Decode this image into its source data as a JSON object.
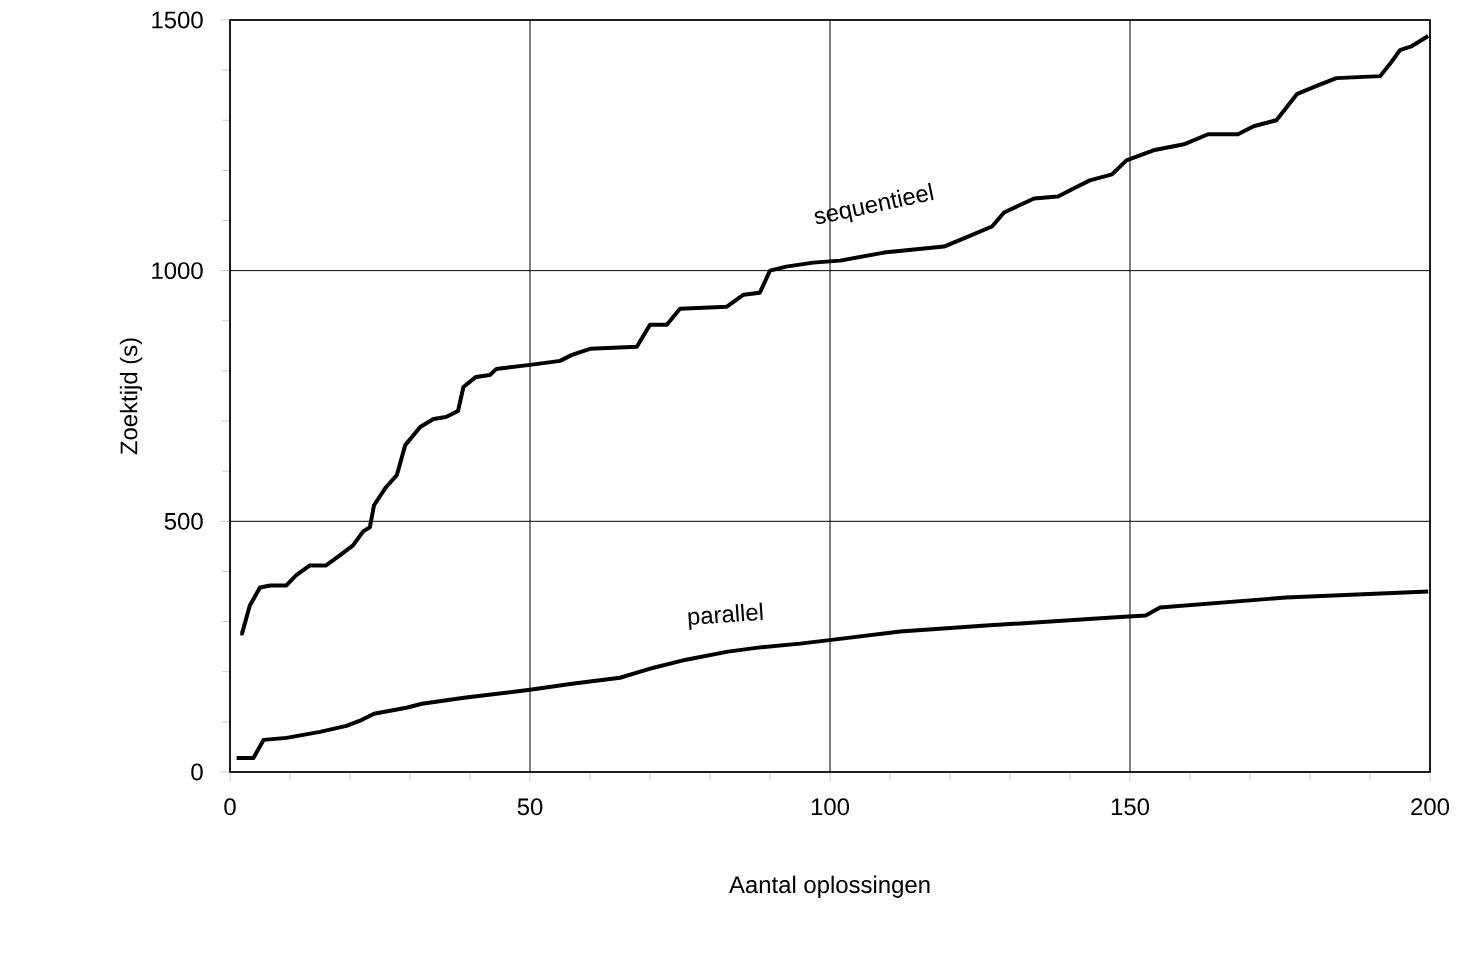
{
  "chart_data": {
    "type": "line",
    "xlabel": "Aantal oplossingen",
    "ylabel": "Zoektijd (s)",
    "xlim": [
      0,
      200
    ],
    "ylim": [
      0,
      1500
    ],
    "xticks": [
      0,
      50,
      100,
      150,
      200
    ],
    "yticks": [
      0,
      500,
      1000,
      1500
    ],
    "grid": true,
    "legend": false,
    "marker": "none",
    "line_style": "solid",
    "series": [
      {
        "name": "sequentieel",
        "color": "#000000",
        "x": [
          1.7,
          2,
          3.3,
          5,
          6.7,
          9.4,
          11,
          13.3,
          16,
          18.3,
          20.5,
          22.2,
          23.3,
          24,
          26,
          27.8,
          29.2,
          31.7,
          33.9,
          36,
          38,
          38.9,
          41,
          43.3,
          44.4,
          50,
          55,
          57,
          60,
          67.8,
          70,
          72.8,
          75,
          82.8,
          85.6,
          88.3,
          90,
          92.7,
          97.2,
          101.7,
          109,
          119,
          123,
          127,
          129,
          134,
          138,
          140.6,
          143.3,
          147,
          149.4,
          153.9,
          159,
          163,
          168,
          170.6,
          174.4,
          177.8,
          181,
          184.4,
          191.7,
          193.3,
          195,
          197,
          199.7
        ],
        "values": [
          276,
          276,
          332,
          368,
          372,
          372,
          392,
          412,
          412,
          432,
          452,
          480,
          488,
          532,
          568,
          592,
          652,
          688,
          704,
          708,
          720,
          768,
          788,
          792,
          804,
          812,
          820,
          832,
          844,
          848,
          892,
          892,
          924,
          928,
          952,
          956,
          1000,
          1008,
          1016,
          1020,
          1036,
          1048,
          1068,
          1088,
          1116,
          1144,
          1148,
          1164,
          1180,
          1192,
          1220,
          1240,
          1252,
          1272,
          1272,
          1288,
          1300,
          1352,
          1368,
          1384,
          1388,
          1412,
          1440,
          1448,
          1468
        ]
      },
      {
        "name": "parallel",
        "color": "#000000",
        "x": [
          1.1,
          3.9,
          5.6,
          9.4,
          15,
          19.4,
          22,
          24,
          29.4,
          32,
          39,
          50,
          57,
          65,
          70.6,
          76,
          83,
          88,
          95,
          100.6,
          111.7,
          126,
          147,
          152.6,
          155,
          176,
          199.7
        ],
        "values": [
          28,
          28,
          64,
          68,
          80,
          92,
          104,
          116,
          128,
          136,
          148,
          164,
          176,
          188,
          208,
          224,
          240,
          248,
          256,
          264,
          280,
          292,
          308,
          312,
          328,
          348,
          360
        ]
      }
    ]
  }
}
